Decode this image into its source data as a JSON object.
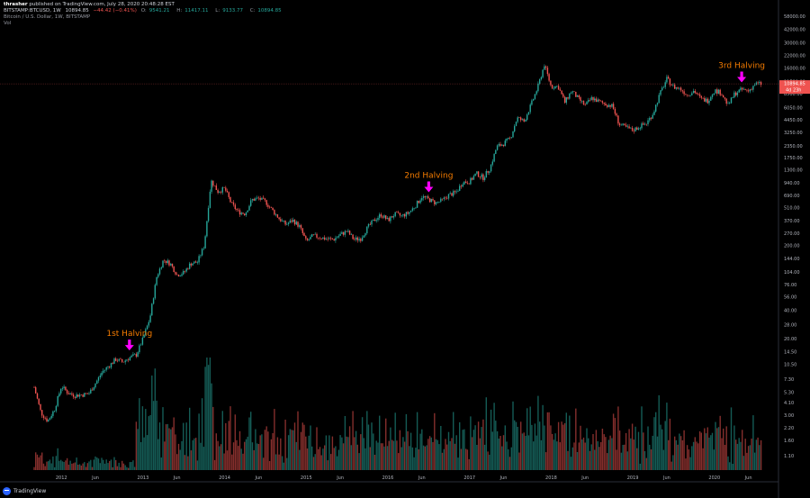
{
  "header": {
    "author": "thrasher",
    "published_text": "published on TradingView.com, July 28, 2020 20:48:28 EST",
    "symbol": "BITSTAMP:BTCUSD, 1W",
    "price": "10894.85",
    "change": "−44.42 (−0.41%)",
    "o_label": "O:",
    "o_value": "9541.21",
    "h_label": "H:",
    "h_value": "11417.11",
    "l_label": "L:",
    "l_value": "9133.77",
    "c_label": "C:",
    "c_value": "10894.85",
    "description": "Bitcoin / U.S. Dollar, 1W, BITSTAMP",
    "volume_label": "Vol"
  },
  "colors": {
    "up": "#26a69a",
    "down": "#ef5350",
    "annotation": "#f57c00",
    "arrow": "#ff00ff",
    "price_tag": "#ef5350"
  },
  "logo": {
    "text": "TradingView",
    "icon": "tradingview-logo-icon"
  },
  "chart_data": {
    "type": "candlestick",
    "scale": "log",
    "y_ticks": [
      "58000.00",
      "42000.00",
      "30000.00",
      "22000.00",
      "16000.00",
      "11500.00",
      "8500.00",
      "6050.00",
      "4450.00",
      "3250.00",
      "2350.00",
      "1750.00",
      "1300.00",
      "940.00",
      "690.00",
      "510.00",
      "370.00",
      "270.00",
      "200.00",
      "144.00",
      "104.00",
      "76.00",
      "56.00",
      "40.00",
      "28.00",
      "20.00",
      "14.50",
      "10.50",
      "7.30",
      "5.30",
      "4.10",
      "3.00",
      "2.20",
      "1.60",
      "1.10"
    ],
    "x_ticks": [
      "2012",
      "Jun",
      "2013",
      "Jun",
      "2014",
      "Jun",
      "2015",
      "Jun",
      "2016",
      "Jun",
      "2017",
      "Jun",
      "2018",
      "Jun",
      "2019",
      "Jun",
      "2020",
      "Jun"
    ],
    "last_price_label": "10894.85",
    "countdown_label": "4d 23h",
    "annotations": [
      {
        "text": "1st Halving",
        "date": "2012-11"
      },
      {
        "text": "2nd Halving",
        "date": "2016-07"
      },
      {
        "text": "3rd Halving",
        "date": "2020-05"
      }
    ],
    "price_path": [
      [
        "2011-09",
        6.0
      ],
      [
        "2011-10",
        3.2
      ],
      [
        "2011-11",
        2.6
      ],
      [
        "2011-12",
        3.5
      ],
      [
        "2012-01",
        6.2
      ],
      [
        "2012-02",
        5.2
      ],
      [
        "2012-03",
        4.9
      ],
      [
        "2012-04",
        5.0
      ],
      [
        "2012-05",
        5.1
      ],
      [
        "2012-06",
        6.6
      ],
      [
        "2012-07",
        8.8
      ],
      [
        "2012-08",
        10.2
      ],
      [
        "2012-09",
        12.0
      ],
      [
        "2012-10",
        11.2
      ],
      [
        "2012-11",
        12.5
      ],
      [
        "2012-12",
        13.4
      ],
      [
        "2013-01",
        20.0
      ],
      [
        "2013-02",
        33.0
      ],
      [
        "2013-03",
        92.0
      ],
      [
        "2013-04",
        140.0
      ],
      [
        "2013-05",
        128.0
      ],
      [
        "2013-06",
        97.0
      ],
      [
        "2013-07",
        102.0
      ],
      [
        "2013-08",
        128.0
      ],
      [
        "2013-09",
        133.0
      ],
      [
        "2013-10",
        200.0
      ],
      [
        "2013-11",
        1000.0
      ],
      [
        "2013-12",
        760.0
      ],
      [
        "2014-01",
        820.0
      ],
      [
        "2014-02",
        560.0
      ],
      [
        "2014-03",
        460.0
      ],
      [
        "2014-04",
        440.0
      ],
      [
        "2014-05",
        620.0
      ],
      [
        "2014-06",
        640.0
      ],
      [
        "2014-07",
        590.0
      ],
      [
        "2014-08",
        480.0
      ],
      [
        "2014-09",
        390.0
      ],
      [
        "2014-10",
        335.0
      ],
      [
        "2014-11",
        375.0
      ],
      [
        "2014-12",
        320.0
      ],
      [
        "2015-01",
        220.0
      ],
      [
        "2015-02",
        255.0
      ],
      [
        "2015-03",
        245.0
      ],
      [
        "2015-04",
        235.0
      ],
      [
        "2015-05",
        232.0
      ],
      [
        "2015-06",
        262.0
      ],
      [
        "2015-07",
        285.0
      ],
      [
        "2015-08",
        232.0
      ],
      [
        "2015-09",
        238.0
      ],
      [
        "2015-10",
        312.0
      ],
      [
        "2015-11",
        375.0
      ],
      [
        "2015-12",
        430.0
      ],
      [
        "2016-01",
        372.0
      ],
      [
        "2016-02",
        435.0
      ],
      [
        "2016-03",
        415.0
      ],
      [
        "2016-04",
        445.0
      ],
      [
        "2016-05",
        530.0
      ],
      [
        "2016-06",
        670.0
      ],
      [
        "2016-07",
        625.0
      ],
      [
        "2016-08",
        572.0
      ],
      [
        "2016-09",
        610.0
      ],
      [
        "2016-10",
        700.0
      ],
      [
        "2016-11",
        742.0
      ],
      [
        "2016-12",
        960.0
      ],
      [
        "2017-01",
        970.0
      ],
      [
        "2017-02",
        1190.0
      ],
      [
        "2017-03",
        1070.0
      ],
      [
        "2017-04",
        1350.0
      ],
      [
        "2017-05",
        2300.0
      ],
      [
        "2017-06",
        2480.0
      ],
      [
        "2017-07",
        2850.0
      ],
      [
        "2017-08",
        4700.0
      ],
      [
        "2017-09",
        4300.0
      ],
      [
        "2017-10",
        6400.0
      ],
      [
        "2017-11",
        9900.0
      ],
      [
        "2017-12",
        17500.0
      ],
      [
        "2018-01",
        10100.0
      ],
      [
        "2018-02",
        10300.0
      ],
      [
        "2018-03",
        6900.0
      ],
      [
        "2018-04",
        9200.0
      ],
      [
        "2018-05",
        7500.0
      ],
      [
        "2018-06",
        6400.0
      ],
      [
        "2018-07",
        7700.0
      ],
      [
        "2018-08",
        7000.0
      ],
      [
        "2018-09",
        6600.0
      ],
      [
        "2018-10",
        6300.0
      ],
      [
        "2018-11",
        4000.0
      ],
      [
        "2018-12",
        3700.0
      ],
      [
        "2019-01",
        3450.0
      ],
      [
        "2019-02",
        3800.0
      ],
      [
        "2019-03",
        4100.0
      ],
      [
        "2019-04",
        5300.0
      ],
      [
        "2019-05",
        8600.0
      ],
      [
        "2019-06",
        12300.0
      ],
      [
        "2019-07",
        10100.0
      ],
      [
        "2019-08",
        9600.0
      ],
      [
        "2019-09",
        8300.0
      ],
      [
        "2019-10",
        9200.0
      ],
      [
        "2019-11",
        7500.0
      ],
      [
        "2019-12",
        7200.0
      ],
      [
        "2020-01",
        9300.0
      ],
      [
        "2020-02",
        8700.0
      ],
      [
        "2020-03",
        6400.0
      ],
      [
        "2020-04",
        8600.0
      ],
      [
        "2020-05",
        9450.0
      ],
      [
        "2020-06",
        9150.0
      ],
      [
        "2020-07",
        10894.85
      ]
    ]
  }
}
